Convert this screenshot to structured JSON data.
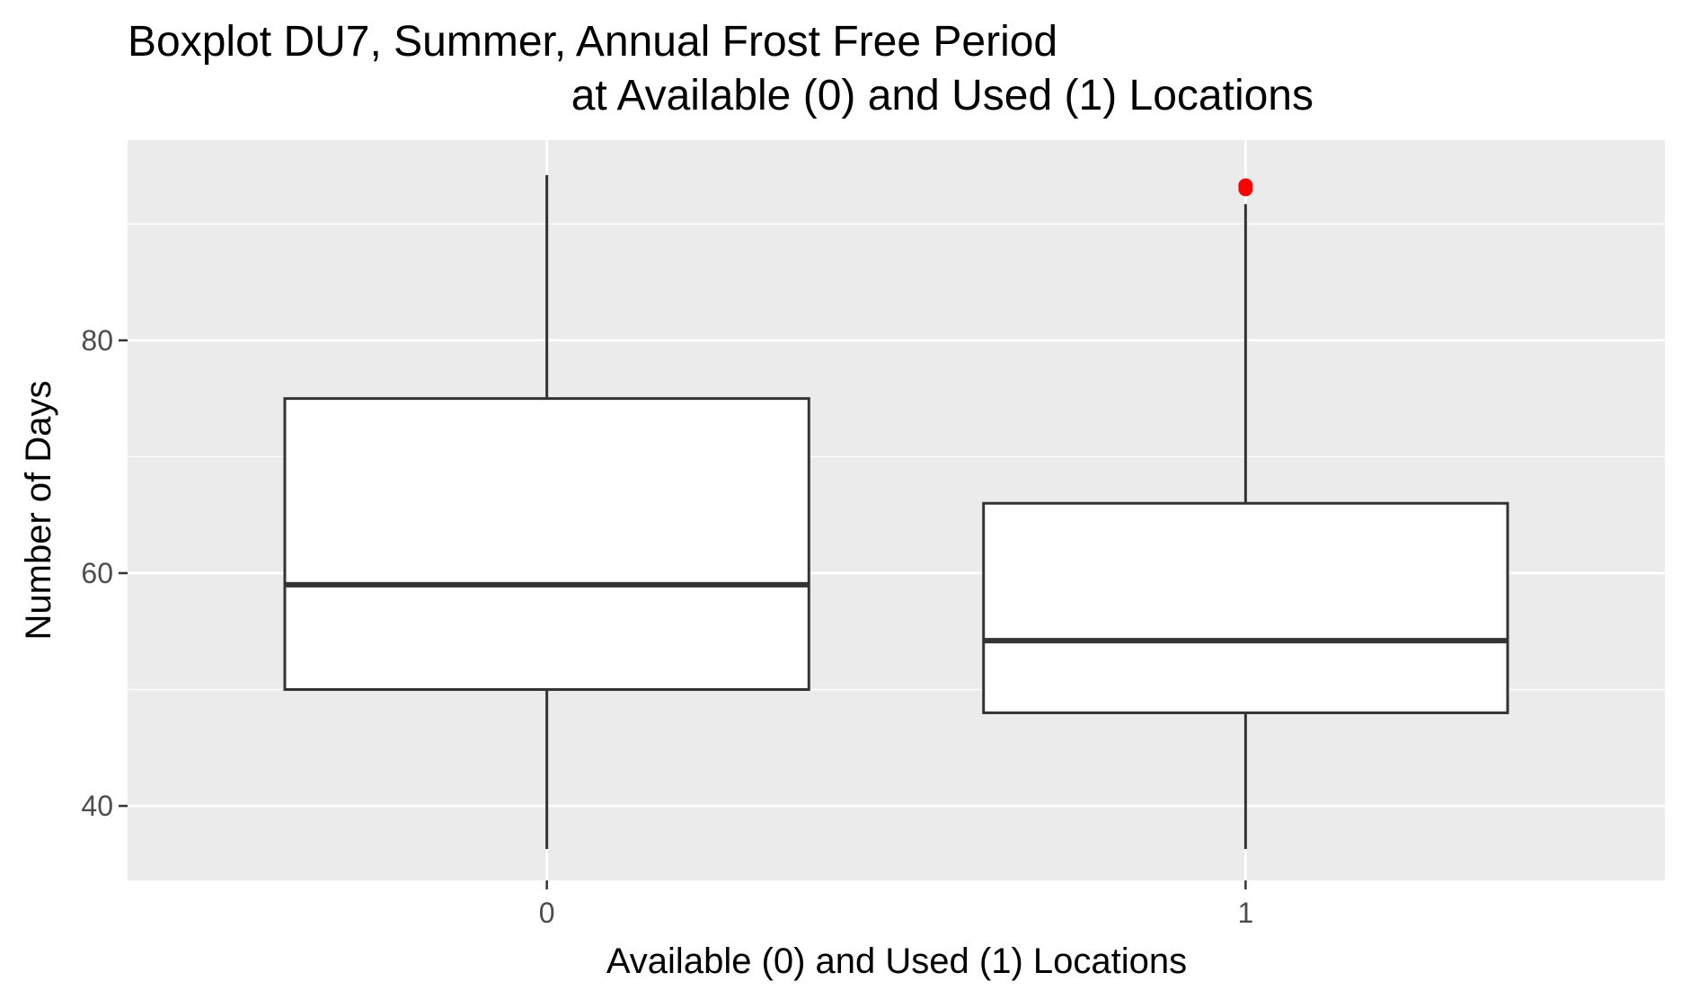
{
  "chart_data": {
    "type": "boxplot",
    "title_lines": [
      "Boxplot DU7, Summer, Annual Frost Free Period",
      "at Available (0) and Used (1) Locations"
    ],
    "xlabel": "Available (0) and Used (1) Locations",
    "ylabel": "Number of Days",
    "categories": [
      "0",
      "1"
    ],
    "ylim": [
      33.6,
      97.2
    ],
    "yticks": [
      40,
      60,
      80
    ],
    "boxes": [
      {
        "category": "0",
        "lower_whisker": 36.3,
        "q1": 50.0,
        "median": 59.0,
        "q3": 75.0,
        "upper_whisker": 94.2,
        "outliers": []
      },
      {
        "category": "1",
        "lower_whisker": 36.3,
        "q1": 48.0,
        "median": 54.2,
        "q3": 66.0,
        "upper_whisker": 91.7,
        "outliers": [
          93.3,
          93.0
        ]
      }
    ],
    "colors": {
      "panel_background": "#ebebeb",
      "grid": "#ffffff",
      "box_fill": "#ffffff",
      "box_line": "#333333",
      "outlier": "#ff0000",
      "tick_text": "#4d4d4d"
    },
    "grid": true,
    "legend": "none"
  }
}
